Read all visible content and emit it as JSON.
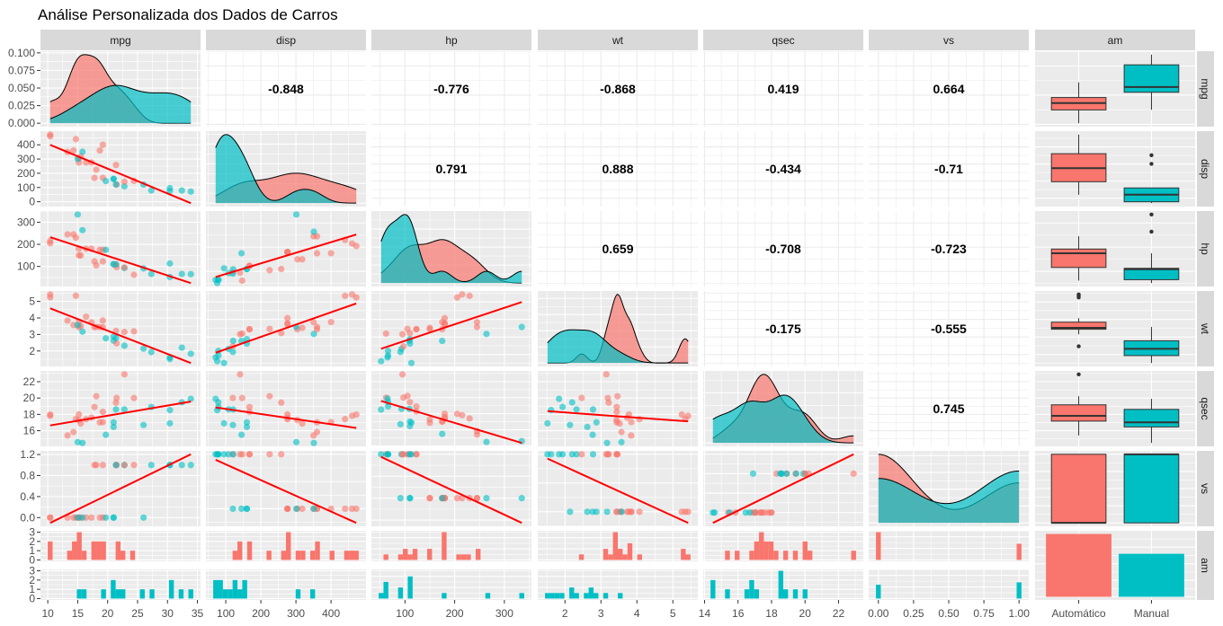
{
  "chart_data": {
    "type": "scatter-matrix",
    "title": "Análise Personalizada dos Dados de Carros",
    "variables": [
      "mpg",
      "disp",
      "hp",
      "wt",
      "qsec",
      "vs",
      "am"
    ],
    "group_variable": "am",
    "group_labels": [
      "Automático",
      "Manual"
    ],
    "colors": {
      "auto": "#F8766D",
      "manual": "#00BFC4",
      "smooth": "#FF0000"
    },
    "data": {
      "mpg": [
        21,
        21,
        22.8,
        21.4,
        18.7,
        18.1,
        14.3,
        24.4,
        22.8,
        19.2,
        17.8,
        16.4,
        17.3,
        15.2,
        10.4,
        10.4,
        14.7,
        32.4,
        30.4,
        33.9,
        21.5,
        15.5,
        15.2,
        13.3,
        19.2,
        27.3,
        26,
        30.4,
        15.8,
        19.7,
        15,
        21.4
      ],
      "disp": [
        160,
        160,
        108,
        258,
        360,
        225,
        360,
        146.7,
        140.8,
        167.6,
        167.6,
        275.8,
        275.8,
        275.8,
        472,
        460,
        440,
        78.7,
        75.7,
        71.1,
        120.1,
        318,
        304,
        350,
        400,
        79,
        120.3,
        95.1,
        351,
        145,
        301,
        121
      ],
      "hp": [
        110,
        110,
        93,
        110,
        175,
        105,
        245,
        62,
        95,
        123,
        123,
        180,
        180,
        180,
        205,
        215,
        230,
        66,
        52,
        65,
        97,
        150,
        150,
        245,
        175,
        66,
        91,
        113,
        264,
        175,
        335,
        109
      ],
      "wt": [
        2.62,
        2.875,
        2.32,
        3.215,
        3.44,
        3.46,
        3.57,
        3.19,
        3.15,
        3.44,
        3.44,
        4.07,
        3.73,
        3.78,
        5.25,
        5.424,
        5.345,
        2.2,
        1.615,
        1.835,
        2.465,
        3.52,
        3.435,
        3.84,
        3.845,
        1.935,
        2.14,
        1.513,
        3.17,
        2.77,
        3.57,
        2.78
      ],
      "qsec": [
        16.46,
        17.02,
        18.61,
        19.44,
        17.02,
        20.22,
        15.84,
        20,
        22.9,
        18.3,
        18.9,
        17.4,
        17.6,
        18,
        17.98,
        17.82,
        17.42,
        19.47,
        18.52,
        19.9,
        20.01,
        16.87,
        17.3,
        15.41,
        17.05,
        18.9,
        16.7,
        16.9,
        14.5,
        15.5,
        14.6,
        18.6
      ],
      "vs": [
        0,
        0,
        1,
        1,
        0,
        1,
        0,
        1,
        1,
        1,
        1,
        0,
        0,
        0,
        0,
        0,
        0,
        1,
        1,
        1,
        1,
        0,
        0,
        0,
        0,
        1,
        0,
        1,
        0,
        0,
        0,
        1
      ],
      "am": [
        1,
        1,
        1,
        0,
        0,
        0,
        0,
        0,
        0,
        0,
        0,
        0,
        0,
        0,
        0,
        0,
        0,
        1,
        1,
        1,
        0,
        0,
        0,
        0,
        0,
        1,
        1,
        1,
        1,
        1,
        1,
        1
      ]
    },
    "correlations": {
      "mpg": {
        "disp": "-0.848",
        "hp": "-0.776",
        "wt": "-0.868",
        "qsec": "0.419",
        "vs": "0.664"
      },
      "disp": {
        "hp": "0.791",
        "wt": "0.888",
        "qsec": "-0.434",
        "vs": "-0.71"
      },
      "hp": {
        "wt": "0.659",
        "qsec": "-0.708",
        "vs": "-0.723"
      },
      "wt": {
        "qsec": "-0.175",
        "vs": "-0.555"
      },
      "qsec": {
        "vs": "0.745"
      }
    },
    "x_ticks": [
      [
        "10",
        "15",
        "20",
        "25",
        "30",
        "35"
      ],
      [
        "100",
        "200",
        "300",
        "400"
      ],
      [
        "100",
        "200",
        "300"
      ],
      [
        "2",
        "3",
        "4",
        "5"
      ],
      [
        "14",
        "16",
        "18",
        "20",
        "22"
      ],
      [
        "0.00",
        "0.25",
        "0.50",
        "0.75",
        "1.00"
      ],
      [
        "Automático",
        "Manual"
      ]
    ],
    "y_ticks": [
      [
        "0.000",
        "0.025",
        "0.050",
        "0.075",
        "0.100"
      ],
      [
        "0",
        "100",
        "200",
        "300",
        "400"
      ],
      [
        "100",
        "200",
        "300"
      ],
      [
        "2",
        "3",
        "4",
        "5"
      ],
      [
        "16",
        "18",
        "20",
        "22"
      ],
      [
        "0.0",
        "0.4",
        "0.8",
        "1.2"
      ],
      [
        "0",
        "1",
        "2",
        "3"
      ]
    ],
    "panels": {
      "diagonal": "density by am (am/am: bar counts)",
      "upper": "correlation (am column: boxplots)",
      "lower": "scatter with linear fit (am row: histograms faceted by am)"
    },
    "grid": true
  }
}
